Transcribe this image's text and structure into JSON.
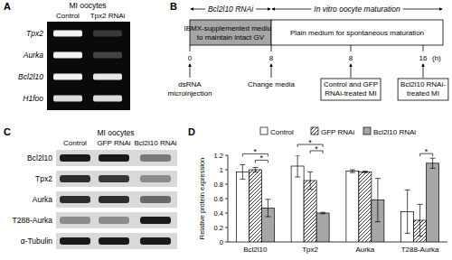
{
  "figure": {
    "panels": [
      {
        "label": "A",
        "header": "MI oocytes",
        "columns": [
          "Control",
          "Tpx2 RNAi"
        ],
        "rows": [
          {
            "name": "Tpx2",
            "bands": [
              1,
              0.2
            ]
          },
          {
            "name": "Aurka",
            "bands": [
              1,
              0.25
            ]
          },
          {
            "name": "Bcl2l10",
            "bands": [
              1,
              0.95
            ]
          },
          {
            "name": "H1foo",
            "bands": [
              0.9,
              0.9
            ]
          }
        ]
      },
      {
        "label": "B",
        "phases": [
          "Bcl2l10 RNAi",
          "In vitro oocyte maturation"
        ],
        "boxes": [
          [
            "IBMX-supplemented medium",
            "to maintain intact GV"
          ],
          [
            "Plain medium for spontaneous maturation"
          ]
        ],
        "time_unit": "(h)",
        "events": [
          {
            "time": 0,
            "text": [
              "dsRNA",
              "microinjection"
            ],
            "boxed": false
          },
          {
            "time": 8,
            "text": [
              "Change media"
            ],
            "boxed": false
          },
          {
            "time": 8,
            "text": [
              "Control and GFP",
              "RNAi-treated MI"
            ],
            "boxed": true
          },
          {
            "time": 16,
            "text": [
              "Bcl2l10 RNAi-",
              "treated MI"
            ],
            "boxed": true
          }
        ]
      },
      {
        "label": "C",
        "header": "MI oocytes",
        "columns": [
          "Control",
          "GFP RNAi",
          "Bcl2l10 RNAi"
        ],
        "rows": [
          {
            "name": "Bcl2l10",
            "bands": [
              1,
              1,
              0.5
            ]
          },
          {
            "name": "Tpx2",
            "bands": [
              0.9,
              0.85,
              0.4
            ]
          },
          {
            "name": "Aurka",
            "bands": [
              0.9,
              0.9,
              0.6
            ]
          },
          {
            "name": "T288-Aurka",
            "bands": [
              0.4,
              0.4,
              1
            ]
          },
          {
            "name": "α-Tubulin",
            "bands": [
              1,
              1,
              1
            ]
          }
        ]
      },
      {
        "label": "D"
      }
    ]
  },
  "chart_data": {
    "type": "bar",
    "y_label": "Relative protein expression",
    "categories": [
      "Bcl2l10",
      "Tpx2",
      "Aurka",
      "T288-Aurka"
    ],
    "series": [
      {
        "name": "Control",
        "color": "#ffffff",
        "values": [
          0.97,
          1.05,
          0.98,
          0.42
        ],
        "errors": [
          0.1,
          0.15,
          0.02,
          0.3
        ]
      },
      {
        "name": "GFP RNAi",
        "color": "#ffffff",
        "values": [
          1.0,
          0.85,
          0.97,
          0.3
        ],
        "errors": [
          0.03,
          0.12,
          0.01,
          0.22
        ]
      },
      {
        "name": "Bcl2l10 RNAi",
        "color": "#a6a6a6",
        "values": [
          0.47,
          0.4,
          0.58,
          1.09
        ],
        "errors": [
          0.12,
          0.01,
          0.3,
          0.07
        ]
      }
    ],
    "ylim": [
      0,
      1.2
    ],
    "yticks": [
      0,
      0.2,
      0.4,
      0.6,
      0.8,
      1,
      1.2
    ],
    "legend": "top",
    "annotations": [
      {
        "text": "*",
        "category": 0,
        "series": [
          1,
          2
        ]
      },
      {
        "text": "*",
        "category": 0,
        "series": [
          0,
          2
        ]
      },
      {
        "text": "*",
        "category": 1,
        "series": [
          1,
          2
        ]
      },
      {
        "text": "*",
        "category": 1,
        "series": [
          0,
          2
        ]
      },
      {
        "text": "*",
        "category": 3,
        "series": [
          1,
          2
        ]
      }
    ]
  }
}
